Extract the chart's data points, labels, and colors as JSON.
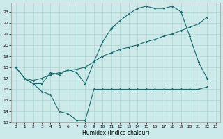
{
  "xlabel": "Humidex (Indice chaleur)",
  "bg_color": "#cdeaea",
  "grid_color": "#aed4d4",
  "line_color": "#1a6b6b",
  "xlim": [
    -0.5,
    23.5
  ],
  "ylim": [
    13,
    23.8
  ],
  "yticks": [
    13,
    14,
    15,
    16,
    17,
    18,
    19,
    20,
    21,
    22,
    23
  ],
  "xticks": [
    0,
    1,
    2,
    3,
    4,
    5,
    6,
    7,
    8,
    9,
    10,
    11,
    12,
    13,
    14,
    15,
    16,
    17,
    18,
    19,
    20,
    21,
    22,
    23
  ],
  "line1_x": [
    0,
    1,
    2,
    3,
    4,
    5,
    6,
    7,
    8,
    9,
    10,
    11,
    12,
    13,
    14,
    15,
    16,
    17,
    18,
    19,
    20,
    21,
    22
  ],
  "line1_y": [
    18.0,
    17.0,
    16.5,
    15.8,
    15.5,
    14.0,
    13.8,
    13.2,
    13.2,
    16.0,
    16.0,
    16.0,
    16.0,
    16.0,
    16.0,
    16.0,
    16.0,
    16.0,
    16.0,
    16.0,
    16.0,
    16.0,
    16.2
  ],
  "line2_x": [
    0,
    1,
    2,
    3,
    4,
    5,
    6,
    7,
    8,
    9,
    10,
    11,
    12,
    13,
    14,
    15,
    16,
    17,
    18,
    19,
    20,
    21,
    22
  ],
  "line2_y": [
    18.0,
    17.0,
    16.8,
    17.0,
    17.3,
    17.5,
    17.7,
    17.8,
    18.0,
    18.5,
    19.0,
    19.3,
    19.6,
    19.8,
    20.0,
    20.3,
    20.5,
    20.8,
    21.0,
    21.3,
    21.6,
    21.9,
    22.5
  ],
  "line3_x": [
    0,
    1,
    2,
    3,
    4,
    5,
    6,
    7,
    8,
    9,
    10,
    11,
    12,
    13,
    14,
    15,
    16,
    17,
    18,
    19,
    20,
    21,
    22
  ],
  "line3_y": [
    18.0,
    17.0,
    16.5,
    16.5,
    17.5,
    17.3,
    17.8,
    17.5,
    16.5,
    18.5,
    20.3,
    21.5,
    22.2,
    22.8,
    23.3,
    23.5,
    23.3,
    23.3,
    23.5,
    23.0,
    20.8,
    18.5,
    17.0
  ]
}
